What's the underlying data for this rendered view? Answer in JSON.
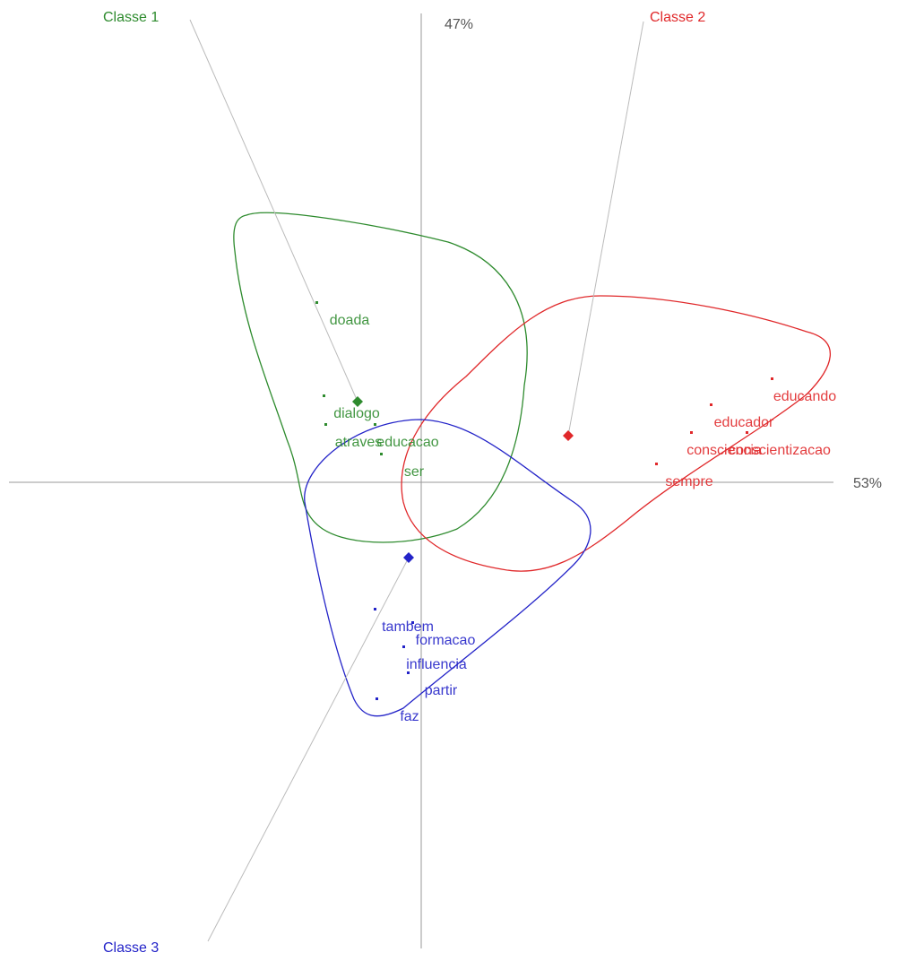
{
  "chart_data": {
    "type": "scatter",
    "x_label": "53%",
    "y_label": "47%",
    "xlim": [
      -4.7,
      5.32
    ],
    "ylim": [
      -5.34,
      5.38
    ],
    "series": [
      {
        "name": "Classe 1",
        "color": "#2e8b2e",
        "labels": [
          "doada",
          "dialogo",
          "atraves",
          "educacao",
          "ser"
        ],
        "x": [
          -0.8,
          -0.72,
          -0.7,
          -0.15,
          -0.08
        ],
        "y": [
          1.8,
          0.76,
          0.44,
          0.44,
          0.11
        ],
        "centroid": [
          -0.71,
          0.9
        ]
      },
      {
        "name": "Classe 2",
        "color": "#e0282a",
        "labels": [
          "educando",
          "educador",
          "consciencia",
          "conscientizacao",
          "sempre"
        ],
        "x": [
          4.28,
          3.6,
          3.38,
          4.0,
          2.99
        ],
        "y": [
          0.95,
          0.66,
          0.35,
          0.35,
          0.0
        ],
        "centroid": [
          1.64,
          0.52
        ]
      },
      {
        "name": "Classe 3",
        "color": "#2323c8",
        "labels": [
          "tambem",
          "formacao",
          "influencia",
          "partir",
          "faz"
        ],
        "x": [
          -0.15,
          0.27,
          0.17,
          0.22,
          -0.13
        ],
        "y": [
          -1.62,
          -1.77,
          -2.04,
          -2.33,
          -2.62
        ],
        "centroid": [
          -0.14,
          -0.84
        ]
      }
    ]
  }
}
